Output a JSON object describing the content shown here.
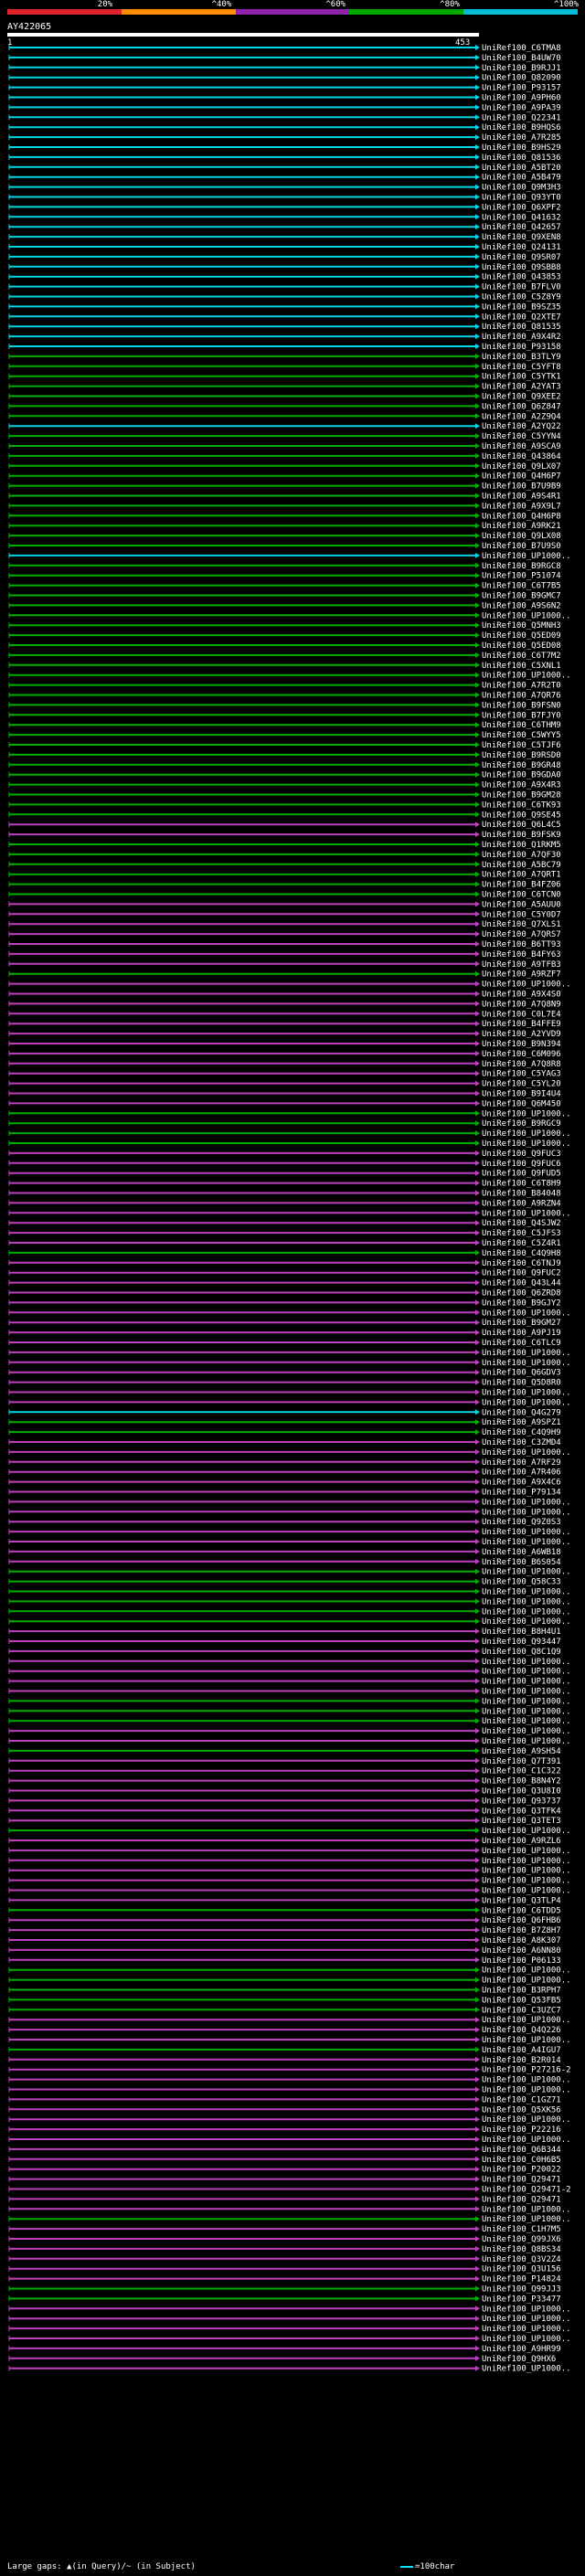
{
  "scale": {
    "labels": [
      "20%",
      "^40%",
      "^60%",
      "^80%",
      "^100%"
    ],
    "colors": [
      "#e0242c",
      "#ff8c00",
      "#8e24aa",
      "#00a800",
      "#00bcd4"
    ]
  },
  "query": {
    "id": "AY422065",
    "start": "1",
    "end": "453"
  },
  "legend": {
    "text": "Large gaps: ▲(in Query)/~ (in Subject)",
    "scale_text": "=100char"
  },
  "hit_colors": {
    "cyan": "#00d8e8",
    "green": "#00b000",
    "magenta": "#c040c0"
  },
  "hits": [
    {
      "label": "UniRef100_C6TMA8",
      "color": "cyan"
    },
    {
      "label": "UniRef100_B4UW70",
      "color": "cyan"
    },
    {
      "label": "UniRef100_B9RJJ1",
      "color": "cyan"
    },
    {
      "label": "UniRef100_Q82090",
      "color": "cyan"
    },
    {
      "label": "UniRef100_P93157",
      "color": "cyan"
    },
    {
      "label": "UniRef100_A9PH60",
      "color": "cyan"
    },
    {
      "label": "UniRef100_A9PA39",
      "color": "cyan"
    },
    {
      "label": "UniRef100_Q22341",
      "color": "cyan"
    },
    {
      "label": "UniRef100_B9HQS6",
      "color": "cyan"
    },
    {
      "label": "UniRef100_A7R285",
      "color": "cyan"
    },
    {
      "label": "UniRef100_B9HS29",
      "color": "cyan"
    },
    {
      "label": "UniRef100_Q81536",
      "color": "cyan"
    },
    {
      "label": "UniRef100_A5BT20",
      "color": "cyan"
    },
    {
      "label": "UniRef100_A5B479",
      "color": "cyan"
    },
    {
      "label": "UniRef100_Q9M3H3",
      "color": "cyan"
    },
    {
      "label": "UniRef100_Q93YT0",
      "color": "cyan"
    },
    {
      "label": "UniRef100_Q6XPF2",
      "color": "cyan"
    },
    {
      "label": "UniRef100_Q41632",
      "color": "cyan"
    },
    {
      "label": "UniRef100_Q42657",
      "color": "cyan"
    },
    {
      "label": "UniRef100_Q9XEN8",
      "color": "cyan"
    },
    {
      "label": "UniRef100_Q24131",
      "color": "cyan"
    },
    {
      "label": "UniRef100_Q9SR07",
      "color": "cyan"
    },
    {
      "label": "UniRef100_Q9SBB8",
      "color": "cyan"
    },
    {
      "label": "UniRef100_Q43853",
      "color": "cyan"
    },
    {
      "label": "UniRef100_B7FLV0",
      "color": "cyan"
    },
    {
      "label": "UniRef100_C5Z8Y9",
      "color": "cyan"
    },
    {
      "label": "UniRef100_B9SZ35",
      "color": "cyan"
    },
    {
      "label": "UniRef100_Q2XTE7",
      "color": "cyan"
    },
    {
      "label": "UniRef100_Q81535",
      "color": "cyan"
    },
    {
      "label": "UniRef100_A9X4R2",
      "color": "cyan"
    },
    {
      "label": "UniRef100_P93158",
      "color": "cyan"
    },
    {
      "label": "UniRef100_B3TLY9",
      "color": "green"
    },
    {
      "label": "UniRef100_C5YFT8",
      "color": "green"
    },
    {
      "label": "UniRef100_C5YTK1",
      "color": "green"
    },
    {
      "label": "UniRef100_A2YAT3",
      "color": "green"
    },
    {
      "label": "UniRef100_Q9XEE2",
      "color": "green"
    },
    {
      "label": "UniRef100_Q6Z847",
      "color": "green"
    },
    {
      "label": "UniRef100_A2Z9Q4",
      "color": "green"
    },
    {
      "label": "UniRef100_A2YQ22",
      "color": "cyan"
    },
    {
      "label": "UniRef100_C5YYN4",
      "color": "green"
    },
    {
      "label": "UniRef100_A9SCA9",
      "color": "green"
    },
    {
      "label": "UniRef100_Q43864",
      "color": "green"
    },
    {
      "label": "UniRef100_Q9LX07",
      "color": "green"
    },
    {
      "label": "UniRef100_Q4H6P7",
      "color": "green"
    },
    {
      "label": "UniRef100_B7U9B9",
      "color": "green"
    },
    {
      "label": "UniRef100_A9S4R1",
      "color": "green"
    },
    {
      "label": "UniRef100_A9X9L7",
      "color": "green"
    },
    {
      "label": "UniRef100_Q4H6P8",
      "color": "green"
    },
    {
      "label": "UniRef100_A9RK21",
      "color": "green"
    },
    {
      "label": "UniRef100_Q9LX08",
      "color": "green"
    },
    {
      "label": "UniRef100_B7U9S0",
      "color": "green"
    },
    {
      "label": "UniRef100_UP1000..",
      "color": "cyan"
    },
    {
      "label": "UniRef100_B9RGC8",
      "color": "green"
    },
    {
      "label": "UniRef100_P51074",
      "color": "green"
    },
    {
      "label": "UniRef100_C6T7B5",
      "color": "green"
    },
    {
      "label": "UniRef100_B9GMC7",
      "color": "green"
    },
    {
      "label": "UniRef100_A9S6N2",
      "color": "green"
    },
    {
      "label": "UniRef100_UP1000..",
      "color": "green"
    },
    {
      "label": "UniRef100_Q5MNH3",
      "color": "green"
    },
    {
      "label": "UniRef100_Q5ED09",
      "color": "green"
    },
    {
      "label": "UniRef100_Q5ED08",
      "color": "green"
    },
    {
      "label": "UniRef100_C6T7M2",
      "color": "green"
    },
    {
      "label": "UniRef100_C5XNL1",
      "color": "green"
    },
    {
      "label": "UniRef100_UP1000..",
      "color": "green"
    },
    {
      "label": "UniRef100_A7R2T0",
      "color": "green"
    },
    {
      "label": "UniRef100_A7QR76",
      "color": "green"
    },
    {
      "label": "UniRef100_B9FSN0",
      "color": "green"
    },
    {
      "label": "UniRef100_B7FJY0",
      "color": "green"
    },
    {
      "label": "UniRef100_C6THM9",
      "color": "green"
    },
    {
      "label": "UniRef100_C5WYY5",
      "color": "green"
    },
    {
      "label": "UniRef100_C5TJF6",
      "color": "green"
    },
    {
      "label": "UniRef100_B9RSD0",
      "color": "green"
    },
    {
      "label": "UniRef100_B9GR48",
      "color": "green"
    },
    {
      "label": "UniRef100_B9GDA0",
      "color": "green"
    },
    {
      "label": "UniRef100_A9X4R3",
      "color": "green"
    },
    {
      "label": "UniRef100_B9GM28",
      "color": "green"
    },
    {
      "label": "UniRef100_C6TK93",
      "color": "green"
    },
    {
      "label": "UniRef100_Q9SE45",
      "color": "green"
    },
    {
      "label": "UniRef100_Q6L4C5",
      "color": "magenta"
    },
    {
      "label": "UniRef100_B9FSK9",
      "color": "magenta"
    },
    {
      "label": "UniRef100_Q1RKM5",
      "color": "green"
    },
    {
      "label": "UniRef100_A7QF30",
      "color": "green"
    },
    {
      "label": "UniRef100_A5BC79",
      "color": "green"
    },
    {
      "label": "UniRef100_A7QRT1",
      "color": "green"
    },
    {
      "label": "UniRef100_B4FZ06",
      "color": "green"
    },
    {
      "label": "UniRef100_C6TCN0",
      "color": "green"
    },
    {
      "label": "UniRef100_A5AUU0",
      "color": "magenta"
    },
    {
      "label": "UniRef100_C5Y0D7",
      "color": "magenta"
    },
    {
      "label": "UniRef100_Q7XLS1",
      "color": "magenta"
    },
    {
      "label": "UniRef100_A7QRS7",
      "color": "magenta"
    },
    {
      "label": "UniRef100_B6TT93",
      "color": "magenta"
    },
    {
      "label": "UniRef100_B4FY63",
      "color": "magenta"
    },
    {
      "label": "UniRef100_A9TFB3",
      "color": "magenta"
    },
    {
      "label": "UniRef100_A9RZF7",
      "color": "green"
    },
    {
      "label": "UniRef100_UP1000..",
      "color": "magenta"
    },
    {
      "label": "UniRef100_A9X4S0",
      "color": "magenta"
    },
    {
      "label": "UniRef100_A7Q8N9",
      "color": "magenta"
    },
    {
      "label": "UniRef100_C0L7E4",
      "color": "magenta"
    },
    {
      "label": "UniRef100_B4FFE9",
      "color": "magenta"
    },
    {
      "label": "UniRef100_A2YVD9",
      "color": "magenta"
    },
    {
      "label": "UniRef100_B9N394",
      "color": "magenta"
    },
    {
      "label": "UniRef100_C6M096",
      "color": "magenta"
    },
    {
      "label": "UniRef100_A7Q8R8",
      "color": "magenta"
    },
    {
      "label": "UniRef100_C5YAG3",
      "color": "magenta"
    },
    {
      "label": "UniRef100_C5YL20",
      "color": "magenta"
    },
    {
      "label": "UniRef100_B9I4U4",
      "color": "magenta"
    },
    {
      "label": "UniRef100_Q6M450",
      "color": "magenta"
    },
    {
      "label": "UniRef100_UP1000..",
      "color": "green"
    },
    {
      "label": "UniRef100_B9RGC9",
      "color": "green"
    },
    {
      "label": "UniRef100_UP1000..",
      "color": "green"
    },
    {
      "label": "UniRef100_UP1000..",
      "color": "green"
    },
    {
      "label": "UniRef100_Q9FUC3",
      "color": "magenta"
    },
    {
      "label": "UniRef100_Q9FUC6",
      "color": "magenta"
    },
    {
      "label": "UniRef100_Q9FUD5",
      "color": "magenta"
    },
    {
      "label": "UniRef100_C6T8H9",
      "color": "magenta"
    },
    {
      "label": "UniRef100_B84048",
      "color": "magenta"
    },
    {
      "label": "UniRef100_A9RZN4",
      "color": "magenta"
    },
    {
      "label": "UniRef100_UP1000..",
      "color": "magenta"
    },
    {
      "label": "UniRef100_Q4SJW2",
      "color": "magenta"
    },
    {
      "label": "UniRef100_C5JFS3",
      "color": "magenta"
    },
    {
      "label": "UniRef100_C5Z4R1",
      "color": "magenta"
    },
    {
      "label": "UniRef100_C4Q9H8",
      "color": "green"
    },
    {
      "label": "UniRef100_C6TNJ9",
      "color": "magenta"
    },
    {
      "label": "UniRef100_Q9FUC2",
      "color": "magenta"
    },
    {
      "label": "UniRef100_Q43L44",
      "color": "magenta"
    },
    {
      "label": "UniRef100_Q6ZRD8",
      "color": "magenta"
    },
    {
      "label": "UniRef100_B9GJY2",
      "color": "magenta"
    },
    {
      "label": "UniRef100_UP1000..",
      "color": "magenta"
    },
    {
      "label": "UniRef100_B9GM27",
      "color": "magenta"
    },
    {
      "label": "UniRef100_A9PJ19",
      "color": "magenta"
    },
    {
      "label": "UniRef100_C6TLC9",
      "color": "magenta"
    },
    {
      "label": "UniRef100_UP1000..",
      "color": "magenta"
    },
    {
      "label": "UniRef100_UP1000..",
      "color": "magenta"
    },
    {
      "label": "UniRef100_Q6GDV3",
      "color": "magenta"
    },
    {
      "label": "UniRef100_Q5D8R0",
      "color": "magenta"
    },
    {
      "label": "UniRef100_UP1000..",
      "color": "magenta"
    },
    {
      "label": "UniRef100_UP1000..",
      "color": "magenta"
    },
    {
      "label": "UniRef100_Q4G279",
      "color": "cyan"
    },
    {
      "label": "UniRef100_A9SPZ1",
      "color": "green"
    },
    {
      "label": "UniRef100_C4Q9H9",
      "color": "green"
    },
    {
      "label": "UniRef100_C3ZMD4",
      "color": "magenta"
    },
    {
      "label": "UniRef100_UP1000..",
      "color": "magenta"
    },
    {
      "label": "UniRef100_A7RF29",
      "color": "magenta"
    },
    {
      "label": "UniRef100_A7R406",
      "color": "magenta"
    },
    {
      "label": "UniRef100_A9X4C6",
      "color": "magenta"
    },
    {
      "label": "UniRef100_P79134",
      "color": "magenta"
    },
    {
      "label": "UniRef100_UP1000..",
      "color": "magenta"
    },
    {
      "label": "UniRef100_UP1000..",
      "color": "magenta"
    },
    {
      "label": "UniRef100_Q9Z0S3",
      "color": "magenta"
    },
    {
      "label": "UniRef100_UP1000..",
      "color": "magenta"
    },
    {
      "label": "UniRef100_UP1000..",
      "color": "magenta"
    },
    {
      "label": "UniRef100_A6WB18",
      "color": "magenta"
    },
    {
      "label": "UniRef100_B6S054",
      "color": "magenta"
    },
    {
      "label": "UniRef100_UP1000..",
      "color": "green"
    },
    {
      "label": "UniRef100_Q58C33",
      "color": "green"
    },
    {
      "label": "UniRef100_UP1000..",
      "color": "green"
    },
    {
      "label": "UniRef100_UP1000..",
      "color": "green"
    },
    {
      "label": "UniRef100_UP1000..",
      "color": "green"
    },
    {
      "label": "UniRef100_UP1000..",
      "color": "green"
    },
    {
      "label": "UniRef100_B8H4U1",
      "color": "magenta"
    },
    {
      "label": "UniRef100_Q93447",
      "color": "magenta"
    },
    {
      "label": "UniRef100_Q8C1Q9",
      "color": "magenta"
    },
    {
      "label": "UniRef100_UP1000..",
      "color": "magenta"
    },
    {
      "label": "UniRef100_UP1000..",
      "color": "magenta"
    },
    {
      "label": "UniRef100_UP1000..",
      "color": "magenta"
    },
    {
      "label": "UniRef100_UP1000..",
      "color": "magenta"
    },
    {
      "label": "UniRef100_UP1000..",
      "color": "green"
    },
    {
      "label": "UniRef100_UP1000..",
      "color": "green"
    },
    {
      "label": "UniRef100_UP1000..",
      "color": "green"
    },
    {
      "label": "UniRef100_UP1000..",
      "color": "magenta"
    },
    {
      "label": "UniRef100_UP1000..",
      "color": "magenta"
    },
    {
      "label": "UniRef100_A9SH54",
      "color": "green"
    },
    {
      "label": "UniRef100_Q7T391",
      "color": "magenta"
    },
    {
      "label": "UniRef100_C1C322",
      "color": "magenta"
    },
    {
      "label": "UniRef100_B8N4Y2",
      "color": "magenta"
    },
    {
      "label": "UniRef100_Q3U8I0",
      "color": "magenta"
    },
    {
      "label": "UniRef100_Q93737",
      "color": "magenta"
    },
    {
      "label": "UniRef100_Q3TFK4",
      "color": "magenta"
    },
    {
      "label": "UniRef100_Q3TET3",
      "color": "magenta"
    },
    {
      "label": "UniRef100_UP1000..",
      "color": "green"
    },
    {
      "label": "UniRef100_A9RZL6",
      "color": "magenta"
    },
    {
      "label": "UniRef100_UP1000..",
      "color": "magenta"
    },
    {
      "label": "UniRef100_UP1000..",
      "color": "magenta"
    },
    {
      "label": "UniRef100_UP1000..",
      "color": "magenta"
    },
    {
      "label": "UniRef100_UP1000..",
      "color": "magenta"
    },
    {
      "label": "UniRef100_UP1000..",
      "color": "magenta"
    },
    {
      "label": "UniRef100_Q3TLP4",
      "color": "magenta"
    },
    {
      "label": "UniRef100_C6TDD5",
      "color": "green"
    },
    {
      "label": "UniRef100_Q6FHB6",
      "color": "magenta"
    },
    {
      "label": "UniRef100_B7Z8H7",
      "color": "magenta"
    },
    {
      "label": "UniRef100_A8K307",
      "color": "magenta"
    },
    {
      "label": "UniRef100_A6NN80",
      "color": "magenta"
    },
    {
      "label": "UniRef100_P06133",
      "color": "magenta"
    },
    {
      "label": "UniRef100_UP1000..",
      "color": "green"
    },
    {
      "label": "UniRef100_UP1000..",
      "color": "green"
    },
    {
      "label": "UniRef100_B3RPH7",
      "color": "green"
    },
    {
      "label": "UniRef100_Q53FB5",
      "color": "green"
    },
    {
      "label": "UniRef100_C3UZC7",
      "color": "green"
    },
    {
      "label": "UniRef100_UP1000..",
      "color": "magenta"
    },
    {
      "label": "UniRef100_Q4Q226",
      "color": "magenta"
    },
    {
      "label": "UniRef100_UP1000..",
      "color": "magenta"
    },
    {
      "label": "UniRef100_A4IGU7",
      "color": "green"
    },
    {
      "label": "UniRef100_B2R014",
      "color": "magenta"
    },
    {
      "label": "UniRef100_P27216-2",
      "color": "magenta"
    },
    {
      "label": "UniRef100_UP1000..",
      "color": "magenta"
    },
    {
      "label": "UniRef100_UP1000..",
      "color": "magenta"
    },
    {
      "label": "UniRef100_C1GZ71",
      "color": "magenta"
    },
    {
      "label": "UniRef100_Q5XK56",
      "color": "magenta"
    },
    {
      "label": "UniRef100_UP1000..",
      "color": "magenta"
    },
    {
      "label": "UniRef100_P22216",
      "color": "magenta"
    },
    {
      "label": "UniRef100_UP1000..",
      "color": "magenta"
    },
    {
      "label": "UniRef100_Q6B344",
      "color": "magenta"
    },
    {
      "label": "UniRef100_C0H6B5",
      "color": "magenta"
    },
    {
      "label": "UniRef100_P20022",
      "color": "magenta"
    },
    {
      "label": "UniRef100_Q29471",
      "color": "magenta"
    },
    {
      "label": "UniRef100_Q29471-2",
      "color": "magenta"
    },
    {
      "label": "UniRef100_Q29471",
      "color": "magenta"
    },
    {
      "label": "UniRef100_UP1000..",
      "color": "magenta"
    },
    {
      "label": "UniRef100_UP1000..",
      "color": "green"
    },
    {
      "label": "UniRef100_C1H7M5",
      "color": "magenta"
    },
    {
      "label": "UniRef100_Q99JX6",
      "color": "magenta"
    },
    {
      "label": "UniRef100_Q8BS34",
      "color": "magenta"
    },
    {
      "label": "UniRef100_Q3V2Z4",
      "color": "magenta"
    },
    {
      "label": "UniRef100_Q3U156",
      "color": "magenta"
    },
    {
      "label": "UniRef100_P14824",
      "color": "magenta"
    },
    {
      "label": "UniRef100_Q99JJ3",
      "color": "green"
    },
    {
      "label": "UniRef100_P33477",
      "color": "green"
    },
    {
      "label": "UniRef100_UP1000..",
      "color": "magenta"
    },
    {
      "label": "UniRef100_UP1000..",
      "color": "magenta"
    },
    {
      "label": "UniRef100_UP1000..",
      "color": "magenta"
    },
    {
      "label": "UniRef100_UP1000..",
      "color": "magenta"
    },
    {
      "label": "UniRef100_A9HR99",
      "color": "magenta"
    },
    {
      "label": "UniRef100_Q9HX6",
      "color": "magenta"
    },
    {
      "label": "UniRef100_UP1000..",
      "color": "magenta"
    }
  ]
}
